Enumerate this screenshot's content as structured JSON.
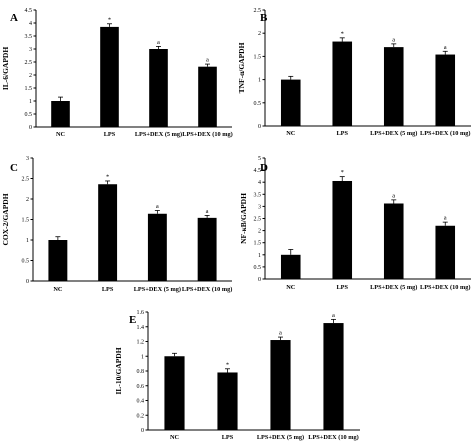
{
  "chart_data": [
    {
      "type": "bar",
      "panel": "A",
      "ylabel": "IL-6/GAPDH",
      "categories": [
        "NC",
        "LPS",
        "LPS+DEX (5 mg)",
        "LPS+DEX (10 mg)"
      ],
      "values": [
        1.0,
        3.85,
        3.0,
        2.32
      ],
      "errors": [
        0.15,
        0.12,
        0.1,
        0.1
      ],
      "annotations": [
        "",
        "*",
        "a",
        "a"
      ],
      "ylim": [
        0,
        4.5
      ],
      "yticks": [
        0,
        0.5,
        1,
        1.5,
        2,
        2.5,
        3,
        3.5,
        4,
        4.5
      ]
    },
    {
      "type": "bar",
      "panel": "B",
      "ylabel": "TNF-α/GAPDH",
      "categories": [
        "NC",
        "LPS",
        "LPS+DEX (5 mg)",
        "LPS+DEX (10 mg)"
      ],
      "values": [
        1.0,
        1.82,
        1.7,
        1.54
      ],
      "errors": [
        0.07,
        0.08,
        0.07,
        0.07
      ],
      "annotations": [
        "",
        "*",
        "a",
        "a"
      ],
      "ylim": [
        0,
        2.5
      ],
      "yticks": [
        0,
        0.5,
        1,
        1.5,
        2,
        2.5
      ]
    },
    {
      "type": "bar",
      "panel": "C",
      "ylabel": "COX-2/GAPDH",
      "categories": [
        "NC",
        "LPS",
        "LPS+DEX (5 mg)",
        "LPS+DEX (10 mg)"
      ],
      "values": [
        1.0,
        2.36,
        1.64,
        1.54
      ],
      "errors": [
        0.08,
        0.08,
        0.08,
        0.06
      ],
      "annotations": [
        "",
        "*",
        "a",
        "a"
      ],
      "ylim": [
        0,
        3
      ],
      "yticks": [
        0,
        0.5,
        1,
        1.5,
        2,
        2.5,
        3
      ]
    },
    {
      "type": "bar",
      "panel": "D",
      "ylabel": "NF-κB/GAPDH",
      "categories": [
        "NC",
        "LPS",
        "LPS+DEX (5 mg)",
        "LPS+DEX (10 mg)"
      ],
      "values": [
        1.0,
        4.05,
        3.12,
        2.2
      ],
      "errors": [
        0.22,
        0.18,
        0.15,
        0.15
      ],
      "annotations": [
        "",
        "*",
        "a",
        "a"
      ],
      "ylim": [
        0,
        5
      ],
      "yticks": [
        0,
        0.5,
        1,
        1.5,
        2,
        2.5,
        3,
        3.5,
        4,
        4.5,
        5
      ]
    },
    {
      "type": "bar",
      "panel": "E",
      "ylabel": "IL-10/GAPDH",
      "categories": [
        "NC",
        "LPS",
        "LPS+DEX (5 mg)",
        "LPS+DEX (10 mg)"
      ],
      "values": [
        1.0,
        0.78,
        1.22,
        1.45
      ],
      "errors": [
        0.04,
        0.05,
        0.04,
        0.05
      ],
      "annotations": [
        "",
        "*",
        "a",
        "a"
      ],
      "ylim": [
        0,
        1.6
      ],
      "yticks": [
        0,
        0.2,
        0.4,
        0.6,
        0.8,
        1,
        1.2,
        1.4,
        1.6
      ]
    }
  ]
}
